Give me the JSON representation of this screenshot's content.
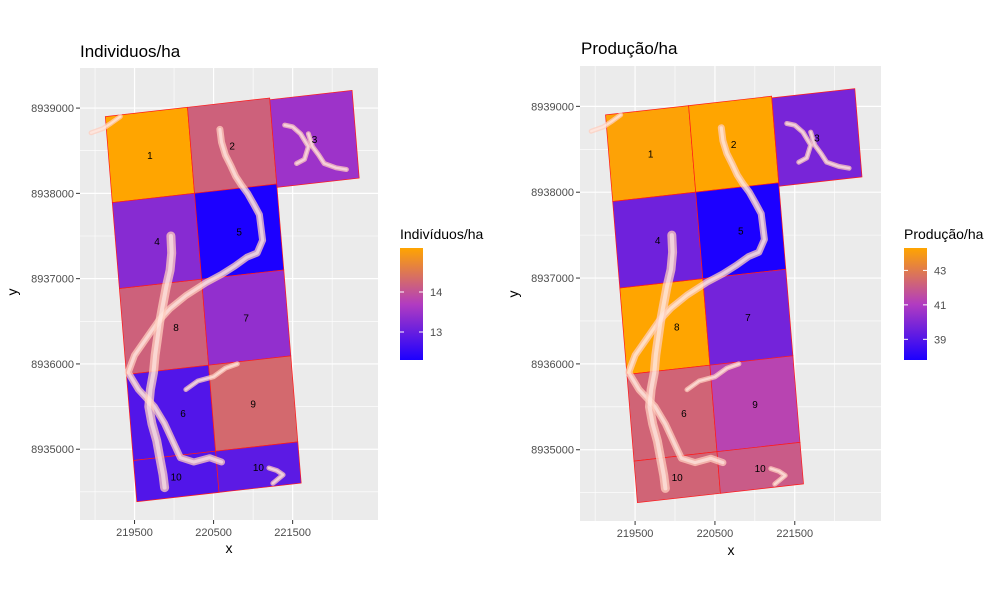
{
  "colors": {
    "low": "#1c00ff",
    "mid": "#b23cc0",
    "high": "#ffa500",
    "border": "#ff1a1a",
    "panel": "#ebebeb",
    "grid": "#ffffff"
  },
  "chart_data": [
    {
      "type": "heatmap",
      "title": "Individuos/ha",
      "xlabel": "x",
      "ylabel": "y",
      "xlim": [
        218810,
        222580
      ],
      "ylim": [
        8934170,
        8939470
      ],
      "x_ticks": [
        219500,
        220500,
        221500
      ],
      "y_ticks": [
        8935000,
        8936000,
        8937000,
        8938000,
        8939000
      ],
      "legend": {
        "title": "Indivíduos/ha",
        "position": "right",
        "range": [
          12.3,
          15.1
        ],
        "ticks": [
          13,
          14
        ],
        "colors": [
          "#1c00ff",
          "#b23cc0",
          "#ffa500"
        ]
      },
      "grid": true,
      "plots": [
        {
          "label": "1",
          "value": 15.1
        },
        {
          "label": "2",
          "value": 14.2
        },
        {
          "label": "3",
          "value": 13.5
        },
        {
          "label": "4",
          "value": 13.3
        },
        {
          "label": "5",
          "value": 12.3
        },
        {
          "label": "7",
          "value": 13.4
        },
        {
          "label": "9",
          "value": 14.3
        },
        {
          "label": "10",
          "value": 12.8
        },
        {
          "label": "10",
          "value": 12.9
        }
      ],
      "overlay_labels": [
        "8",
        "6"
      ]
    },
    {
      "type": "heatmap",
      "title": "Produção/ha",
      "xlabel": "x",
      "ylabel": "y",
      "xlim": [
        218810,
        222580
      ],
      "ylim": [
        8934170,
        8939470
      ],
      "x_ticks": [
        219500,
        220500,
        221500
      ],
      "y_ticks": [
        8935000,
        8936000,
        8937000,
        8938000,
        8939000
      ],
      "legend": {
        "title": "Produção/ha",
        "position": "right",
        "range": [
          37.8,
          44.3
        ],
        "ticks": [
          39,
          41,
          43
        ],
        "colors": [
          "#1c00ff",
          "#b23cc0",
          "#ffa500"
        ]
      },
      "grid": true,
      "plots": [
        {
          "label": "1",
          "value": 44.2
        },
        {
          "label": "2",
          "value": 44.3
        },
        {
          "label": "3",
          "value": 39.8
        },
        {
          "label": "4",
          "value": 39.6
        },
        {
          "label": "5",
          "value": 37.8
        },
        {
          "label": "7",
          "value": 39.7
        },
        {
          "label": "9",
          "value": 41.3
        },
        {
          "label": "10",
          "value": 42.3
        },
        {
          "label": "10",
          "value": 42.0
        }
      ],
      "overlay_labels": [
        "8",
        "6"
      ]
    }
  ]
}
